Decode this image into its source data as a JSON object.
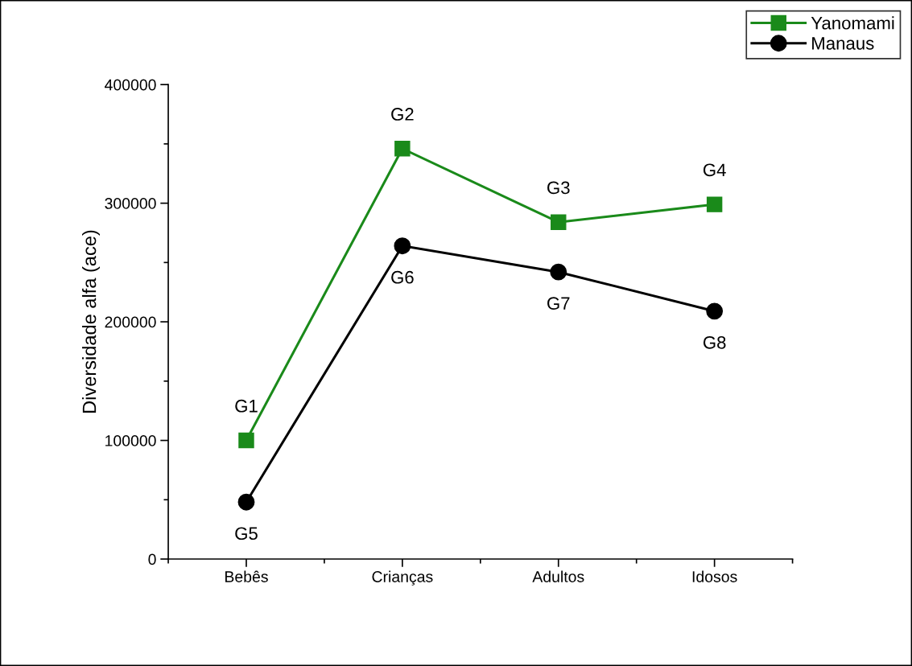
{
  "chart_data": {
    "type": "line",
    "ylabel": "Diversidade alfa (ace)",
    "categories": [
      "Bebês",
      "Crianças",
      "Adultos",
      "Idosos"
    ],
    "series": [
      {
        "name": "Yanomami",
        "color": "#1a8a1a",
        "marker": "square",
        "values": [
          100000,
          346000,
          284000,
          299000
        ]
      },
      {
        "name": "Manaus",
        "color": "#000000",
        "marker": "circle",
        "values": [
          48000,
          264000,
          242000,
          209000
        ]
      }
    ],
    "ylim": [
      0,
      400000
    ],
    "yticks": [
      0,
      100000,
      200000,
      300000,
      400000
    ],
    "grid": false,
    "legend": "top right",
    "line_style": "solid",
    "annotations": [
      {
        "text": "G1",
        "x": "Bebês",
        "y": 100000
      },
      {
        "text": "G2",
        "x": "Crianças",
        "y": 346000
      },
      {
        "text": "G3",
        "x": "Adultos",
        "y": 284000
      },
      {
        "text": "G4",
        "x": "Idosos",
        "y": 299000
      },
      {
        "text": "G5",
        "x": "Bebês",
        "y": 48000
      },
      {
        "text": "G6",
        "x": "Crianças",
        "y": 264000
      },
      {
        "text": "G7",
        "x": "Adultos",
        "y": 242000
      },
      {
        "text": "G8",
        "x": "Idosos",
        "y": 209000
      }
    ]
  }
}
